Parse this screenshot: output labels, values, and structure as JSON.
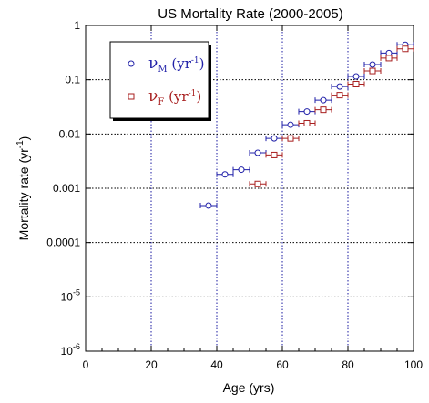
{
  "chart_data": {
    "type": "scatter",
    "title": "US Mortality Rate (2000-2005)",
    "xlabel": "Age (yrs)",
    "ylabel": "Mortality rate (yr",
    "ylabel_sup": "-1",
    "ylabel_suffix": ")",
    "xlim": [
      0,
      100
    ],
    "ylim": [
      1e-06,
      1
    ],
    "yscale": "log",
    "grid": true,
    "grid_style": "dotted",
    "legend_position": "top-left",
    "x_ticks": [
      0,
      20,
      40,
      60,
      80,
      100
    ],
    "x_tick_labels": [
      "0",
      "20",
      "40",
      "60",
      "80",
      "100"
    ],
    "y_ticks": [
      1,
      0.1,
      0.01,
      0.001,
      0.0001,
      1e-05,
      1e-06
    ],
    "y_tick_labels": [
      {
        "base": "1",
        "sup": ""
      },
      {
        "base": "0.1",
        "sup": ""
      },
      {
        "base": "0.01",
        "sup": ""
      },
      {
        "base": "0.001",
        "sup": ""
      },
      {
        "base": "0.0001",
        "sup": ""
      },
      {
        "base": "10",
        "sup": "-5"
      },
      {
        "base": "10",
        "sup": "-6"
      }
    ],
    "series": [
      {
        "key": "male",
        "legend_symbol": "ν",
        "legend_sub": "M",
        "legend_unit": " (yr",
        "legend_sup": "-1",
        "legend_close": ")",
        "marker": "circle",
        "color": "#1f1fa8",
        "points": [
          {
            "x": 37.5,
            "y": 0.00048,
            "xerr": 2.5
          },
          {
            "x": 42.5,
            "y": 0.0018,
            "xerr": 2.5
          },
          {
            "x": 47.5,
            "y": 0.0022,
            "xerr": 2.5
          },
          {
            "x": 52.5,
            "y": 0.0045,
            "xerr": 2.5
          },
          {
            "x": 57.5,
            "y": 0.0083,
            "xerr": 2.5
          },
          {
            "x": 62.5,
            "y": 0.0148,
            "xerr": 2.5
          },
          {
            "x": 67.5,
            "y": 0.026,
            "xerr": 2.5
          },
          {
            "x": 72.5,
            "y": 0.042,
            "xerr": 2.5
          },
          {
            "x": 77.5,
            "y": 0.075,
            "xerr": 2.5
          },
          {
            "x": 82.5,
            "y": 0.115,
            "xerr": 2.5
          },
          {
            "x": 87.5,
            "y": 0.19,
            "xerr": 2.5
          },
          {
            "x": 92.5,
            "y": 0.31,
            "xerr": 2.5
          },
          {
            "x": 97.5,
            "y": 0.44,
            "xerr": 2.5
          }
        ]
      },
      {
        "key": "female",
        "legend_symbol": "ν",
        "legend_sub": "F",
        "legend_unit": " (yr",
        "legend_sup": "-1",
        "legend_close": ")",
        "marker": "square",
        "color": "#a81f1f",
        "points": [
          {
            "x": 52.5,
            "y": 0.0012,
            "xerr": 2.5
          },
          {
            "x": 57.5,
            "y": 0.0041,
            "xerr": 2.5
          },
          {
            "x": 62.5,
            "y": 0.0083,
            "xerr": 2.5
          },
          {
            "x": 67.5,
            "y": 0.0158,
            "xerr": 2.5
          },
          {
            "x": 72.5,
            "y": 0.028,
            "xerr": 2.5
          },
          {
            "x": 77.5,
            "y": 0.052,
            "xerr": 2.5
          },
          {
            "x": 82.5,
            "y": 0.083,
            "xerr": 2.5
          },
          {
            "x": 87.5,
            "y": 0.145,
            "xerr": 2.5
          },
          {
            "x": 92.5,
            "y": 0.25,
            "xerr": 2.5
          },
          {
            "x": 97.5,
            "y": 0.37,
            "xerr": 2.5
          }
        ]
      }
    ]
  }
}
